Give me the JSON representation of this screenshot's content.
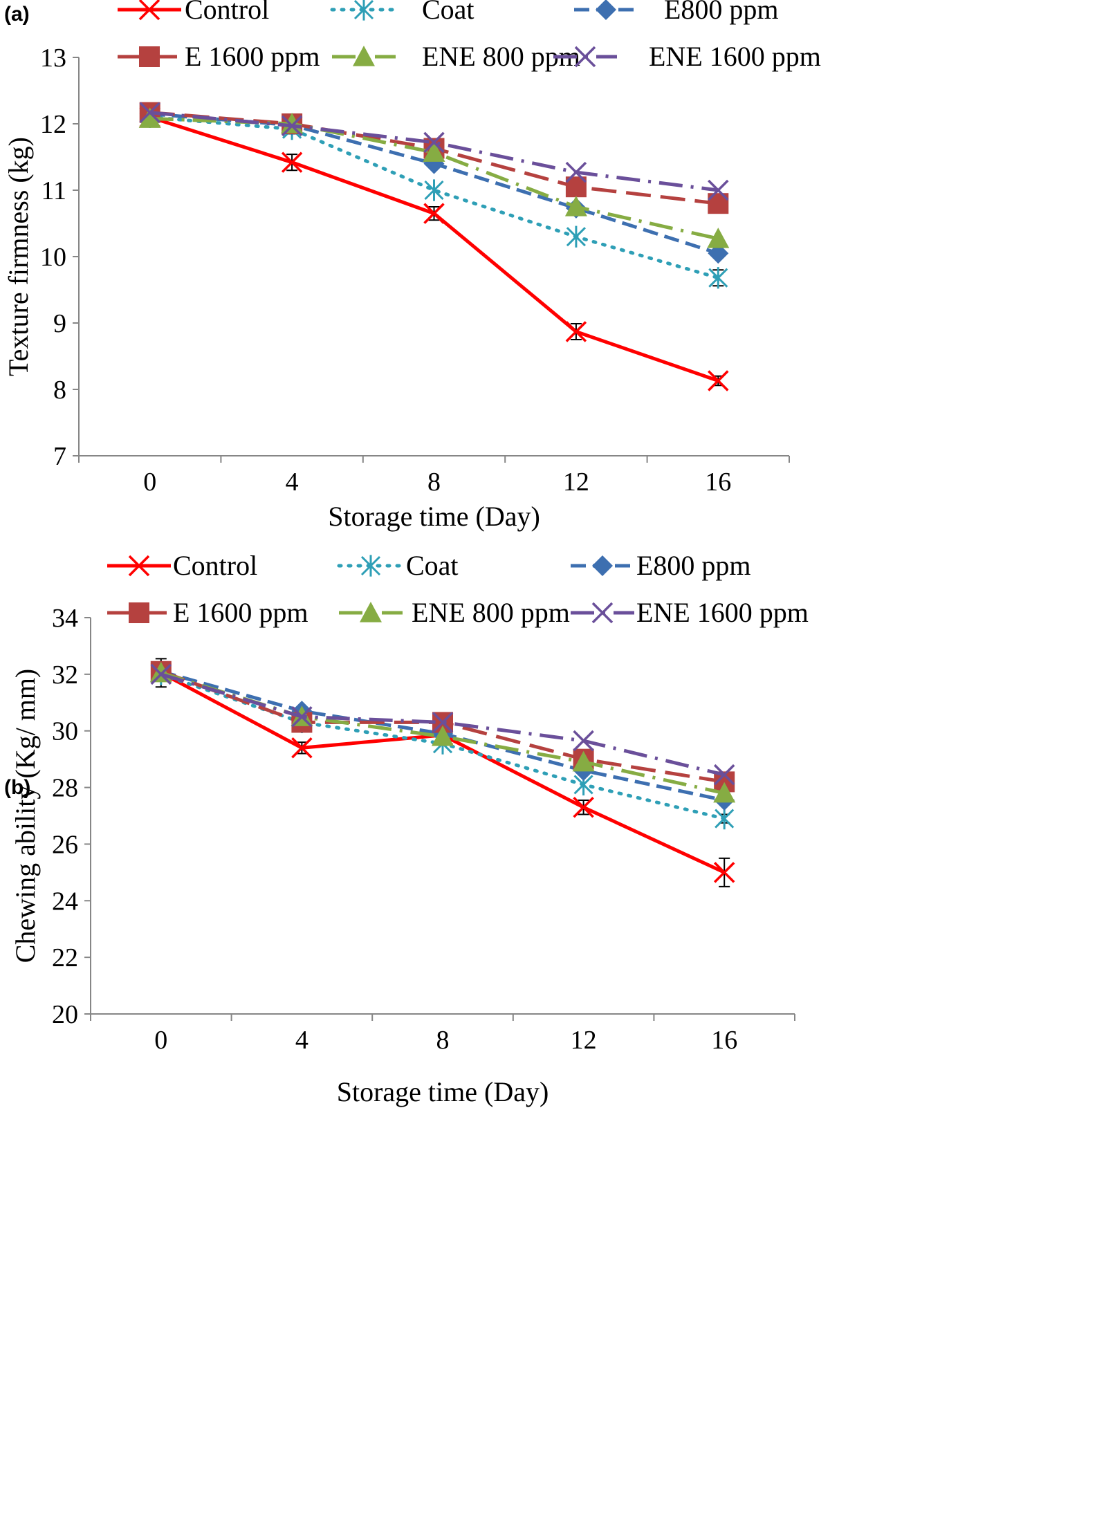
{
  "chart_data": [
    {
      "type": "line",
      "panel_label": "(a)",
      "title": "",
      "xlabel": "Storage time (Day)",
      "ylabel": "Texture firmness  (kg)",
      "x": [
        0,
        4,
        8,
        12,
        16
      ],
      "xlim": [
        -2,
        18
      ],
      "ylim": [
        7,
        13
      ],
      "y_ticks": [
        7,
        8,
        9,
        10,
        11,
        12,
        13
      ],
      "grid": false,
      "legend_position": "top",
      "series": [
        {
          "name": "Control",
          "color": "#ff0000",
          "marker": "x-cross",
          "line_style": "solid",
          "values": [
            12.1,
            11.42,
            10.65,
            8.87,
            8.13
          ],
          "errors": [
            0.05,
            0.12,
            0.1,
            0.12,
            0.07
          ]
        },
        {
          "name": "Coat",
          "color": "#2e9fb6",
          "marker": "asterisk",
          "line_style": "dotted",
          "values": [
            12.1,
            11.92,
            11.0,
            10.3,
            9.68
          ],
          "errors": [
            0,
            0.07,
            0,
            0,
            0.12
          ]
        },
        {
          "name": "E800 ppm",
          "color": "#3d6fb0",
          "marker": "diamond",
          "line_style": "dashed",
          "values": [
            12.15,
            11.98,
            11.4,
            10.73,
            10.05
          ],
          "errors": [
            0,
            0,
            0,
            0,
            0
          ]
        },
        {
          "name": "E 1600 ppm",
          "color": "#b5413f",
          "marker": "square",
          "line_style": "long-dash",
          "values": [
            12.17,
            12.0,
            11.63,
            11.05,
            10.8
          ],
          "errors": [
            0,
            0,
            0,
            0,
            0
          ]
        },
        {
          "name": "ENE 800 ppm",
          "color": "#86ac43",
          "marker": "triangle",
          "line_style": "long-dash-dot",
          "values": [
            12.08,
            12.0,
            11.57,
            10.75,
            10.27
          ],
          "errors": [
            0,
            0,
            0,
            0,
            0
          ]
        },
        {
          "name": "ENE 1600 ppm",
          "color": "#6a4f9a",
          "marker": "x-cross",
          "line_style": "long-dash-dot",
          "values": [
            12.17,
            11.97,
            11.72,
            11.27,
            11.0
          ],
          "errors": [
            0,
            0,
            0,
            0,
            0
          ]
        }
      ]
    },
    {
      "type": "line",
      "panel_label": "(b)",
      "title": "",
      "xlabel": "Storage time (Day)",
      "ylabel": "Chewing ability (Kg/ mm)",
      "x": [
        0,
        4,
        8,
        12,
        16
      ],
      "xlim": [
        -2,
        18
      ],
      "ylim": [
        20,
        34
      ],
      "y_ticks": [
        20,
        22,
        24,
        26,
        28,
        30,
        32,
        34
      ],
      "grid": false,
      "legend_position": "top",
      "series": [
        {
          "name": "Control",
          "color": "#ff0000",
          "marker": "x-cross",
          "line_style": "solid",
          "values": [
            32.05,
            29.4,
            29.85,
            27.3,
            25.0
          ],
          "errors": [
            0.5,
            0.2,
            0,
            0.25,
            0.5
          ]
        },
        {
          "name": "Coat",
          "color": "#2e9fb6",
          "marker": "asterisk",
          "line_style": "dotted",
          "values": [
            32.0,
            30.3,
            29.55,
            28.1,
            26.9
          ],
          "errors": [
            0,
            0,
            0,
            0,
            0.15
          ]
        },
        {
          "name": "E800 ppm",
          "color": "#3d6fb0",
          "marker": "diamond",
          "line_style": "dashed",
          "values": [
            32.1,
            30.7,
            29.9,
            28.6,
            27.55
          ],
          "errors": [
            0,
            0,
            0,
            0,
            0
          ]
        },
        {
          "name": "E 1600 ppm",
          "color": "#b5413f",
          "marker": "square",
          "line_style": "long-dash",
          "values": [
            32.1,
            30.3,
            30.3,
            29.0,
            28.2
          ],
          "errors": [
            0,
            0.3,
            0,
            0,
            0
          ]
        },
        {
          "name": "ENE 800 ppm",
          "color": "#86ac43",
          "marker": "triangle",
          "line_style": "long-dash-dot",
          "values": [
            32.05,
            30.5,
            29.8,
            28.9,
            27.8
          ],
          "errors": [
            0,
            0,
            0,
            0,
            0
          ]
        },
        {
          "name": "ENE 1600 ppm",
          "color": "#6a4f9a",
          "marker": "x-cross",
          "line_style": "long-dash-dot",
          "values": [
            32.0,
            30.5,
            30.3,
            29.65,
            28.45
          ],
          "errors": [
            0,
            0,
            0,
            0,
            0
          ]
        }
      ]
    }
  ]
}
